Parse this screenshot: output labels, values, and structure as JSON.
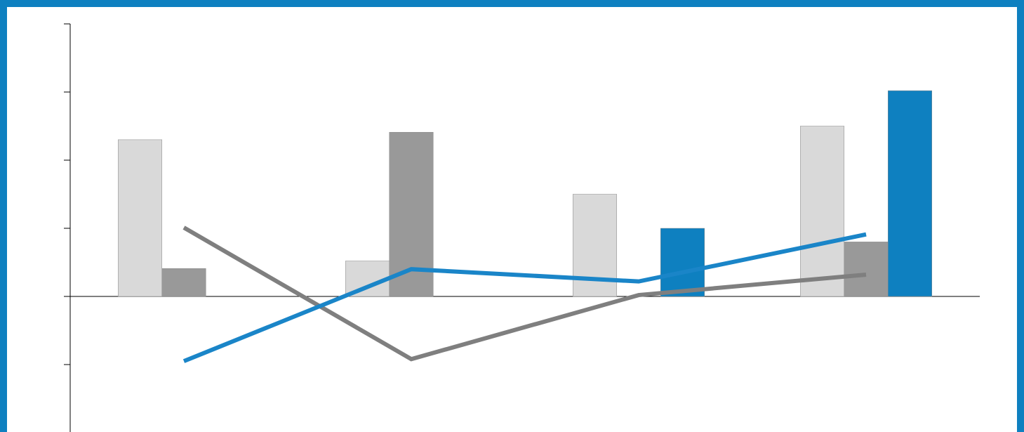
{
  "chart_data": {
    "type": "bar",
    "categories": [
      null,
      null,
      null,
      null
    ],
    "series": [
      {
        "type": "bar",
        "color": "#d9d9d9",
        "values": [
          2.3,
          0.52,
          1.5,
          2.5
        ]
      },
      {
        "type": "bar",
        "color": "#999999",
        "values": [
          0.41,
          2.41,
          0,
          0.8
        ]
      },
      {
        "type": "bar",
        "color": "#0e80c0",
        "values": [
          0,
          0,
          1.0,
          3.02
        ]
      },
      {
        "type": "line",
        "color": "#7f7f7f",
        "values": [
          1.01,
          -0.92,
          0.02,
          0.32
        ]
      },
      {
        "type": "line",
        "color": "#1a85c8",
        "values": [
          -0.95,
          0.4,
          0.22,
          0.91
        ]
      }
    ],
    "ylim": [
      -2,
      4
    ],
    "yticks": [
      -2,
      -1,
      0,
      1,
      2,
      3,
      4
    ]
  }
}
